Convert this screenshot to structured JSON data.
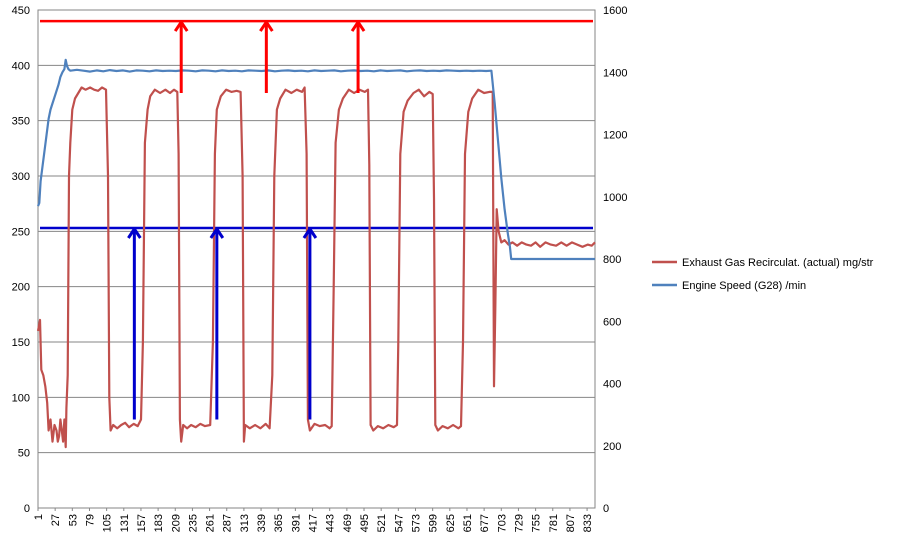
{
  "chart_data": {
    "type": "line",
    "title": "",
    "xlabel": "",
    "ylabel_left": "",
    "ylabel_right": "",
    "left_axis": {
      "min": 0,
      "max": 450,
      "step": 50,
      "ticks": [
        "0",
        "50",
        "100",
        "150",
        "200",
        "250",
        "300",
        "350",
        "400",
        "450"
      ]
    },
    "right_axis": {
      "min": 0,
      "max": 1600,
      "step": 200,
      "ticks": [
        "0",
        "200",
        "400",
        "600",
        "800",
        "1000",
        "1200",
        "1400",
        "1600"
      ]
    },
    "x_range": [
      1,
      845
    ],
    "x_ticks": [
      "1",
      "27",
      "53",
      "79",
      "105",
      "131",
      "157",
      "183",
      "209",
      "235",
      "261",
      "287",
      "313",
      "339",
      "365",
      "391",
      "417",
      "443",
      "469",
      "495",
      "521",
      "547",
      "573",
      "599",
      "625",
      "651",
      "677",
      "703",
      "729",
      "755",
      "781",
      "807",
      "833"
    ],
    "grid": true,
    "legend_position": "right",
    "colors": {
      "egr": "#c0504d",
      "speed": "#4f81bd",
      "red_annotation": "#ff0000",
      "blue_annotation": "#0000cc"
    },
    "series": [
      {
        "name": "Exhaust Gas Recirculat. (actual)  mg/str",
        "axis": "left",
        "color": "#c0504d",
        "points": [
          [
            1,
            160
          ],
          [
            4,
            170
          ],
          [
            6,
            125
          ],
          [
            9,
            120
          ],
          [
            12,
            110
          ],
          [
            15,
            95
          ],
          [
            17,
            70
          ],
          [
            20,
            80
          ],
          [
            23,
            60
          ],
          [
            26,
            75
          ],
          [
            29,
            70
          ],
          [
            31,
            60
          ],
          [
            33,
            65
          ],
          [
            35,
            80
          ],
          [
            37,
            70
          ],
          [
            39,
            60
          ],
          [
            41,
            80
          ],
          [
            43,
            55
          ],
          [
            44,
            90
          ],
          [
            46,
            120
          ],
          [
            48,
            300
          ],
          [
            50,
            330
          ],
          [
            53,
            360
          ],
          [
            57,
            370
          ],
          [
            62,
            375
          ],
          [
            67,
            380
          ],
          [
            73,
            378
          ],
          [
            80,
            380
          ],
          [
            86,
            378
          ],
          [
            92,
            377
          ],
          [
            98,
            380
          ],
          [
            104,
            378
          ],
          [
            107,
            300
          ],
          [
            109,
            100
          ],
          [
            111,
            70
          ],
          [
            115,
            75
          ],
          [
            121,
            72
          ],
          [
            127,
            75
          ],
          [
            133,
            77
          ],
          [
            139,
            73
          ],
          [
            146,
            76
          ],
          [
            152,
            74
          ],
          [
            157,
            80
          ],
          [
            160,
            150
          ],
          [
            163,
            330
          ],
          [
            167,
            360
          ],
          [
            171,
            372
          ],
          [
            178,
            378
          ],
          [
            186,
            375
          ],
          [
            194,
            378
          ],
          [
            201,
            375
          ],
          [
            207,
            378
          ],
          [
            212,
            376
          ],
          [
            214,
            320
          ],
          [
            216,
            80
          ],
          [
            218,
            60
          ],
          [
            221,
            75
          ],
          [
            227,
            72
          ],
          [
            233,
            75
          ],
          [
            240,
            73
          ],
          [
            247,
            76
          ],
          [
            254,
            74
          ],
          [
            262,
            75
          ],
          [
            266,
            150
          ],
          [
            269,
            320
          ],
          [
            272,
            360
          ],
          [
            278,
            372
          ],
          [
            286,
            378
          ],
          [
            294,
            376
          ],
          [
            302,
            377
          ],
          [
            308,
            376
          ],
          [
            311,
            300
          ],
          [
            313,
            60
          ],
          [
            315,
            75
          ],
          [
            322,
            72
          ],
          [
            330,
            75
          ],
          [
            338,
            72
          ],
          [
            346,
            76
          ],
          [
            352,
            72
          ],
          [
            356,
            120
          ],
          [
            359,
            300
          ],
          [
            363,
            360
          ],
          [
            368,
            370
          ],
          [
            376,
            378
          ],
          [
            385,
            375
          ],
          [
            393,
            378
          ],
          [
            401,
            376
          ],
          [
            405,
            380
          ],
          [
            408,
            320
          ],
          [
            410,
            80
          ],
          [
            413,
            70
          ],
          [
            420,
            76
          ],
          [
            428,
            74
          ],
          [
            436,
            75
          ],
          [
            443,
            72
          ],
          [
            446,
            74
          ],
          [
            449,
            200
          ],
          [
            452,
            330
          ],
          [
            457,
            360
          ],
          [
            463,
            370
          ],
          [
            472,
            378
          ],
          [
            480,
            375
          ],
          [
            488,
            378
          ],
          [
            496,
            376
          ],
          [
            501,
            378
          ],
          [
            503,
            310
          ],
          [
            505,
            75
          ],
          [
            509,
            70
          ],
          [
            516,
            74
          ],
          [
            524,
            72
          ],
          [
            532,
            75
          ],
          [
            540,
            73
          ],
          [
            545,
            75
          ],
          [
            547,
            150
          ],
          [
            550,
            320
          ],
          [
            555,
            358
          ],
          [
            561,
            368
          ],
          [
            570,
            375
          ],
          [
            578,
            378
          ],
          [
            586,
            372
          ],
          [
            594,
            376
          ],
          [
            599,
            374
          ],
          [
            601,
            280
          ],
          [
            603,
            75
          ],
          [
            607,
            70
          ],
          [
            614,
            74
          ],
          [
            622,
            72
          ],
          [
            630,
            75
          ],
          [
            638,
            72
          ],
          [
            642,
            74
          ],
          [
            645,
            150
          ],
          [
            648,
            320
          ],
          [
            653,
            358
          ],
          [
            659,
            370
          ],
          [
            668,
            378
          ],
          [
            677,
            375
          ],
          [
            685,
            376
          ],
          [
            690,
            376
          ],
          [
            692,
            110
          ],
          [
            694,
            180
          ],
          [
            696,
            270
          ],
          [
            699,
            250
          ],
          [
            703,
            240
          ],
          [
            708,
            242
          ],
          [
            714,
            238
          ],
          [
            720,
            240
          ],
          [
            727,
            237
          ],
          [
            734,
            240
          ],
          [
            741,
            238
          ],
          [
            748,
            237
          ],
          [
            755,
            240
          ],
          [
            762,
            236
          ],
          [
            770,
            240
          ],
          [
            778,
            238
          ],
          [
            786,
            237
          ],
          [
            794,
            240
          ],
          [
            802,
            237
          ],
          [
            810,
            240
          ],
          [
            818,
            238
          ],
          [
            826,
            236
          ],
          [
            834,
            238
          ],
          [
            840,
            237
          ],
          [
            845,
            240
          ]
        ]
      },
      {
        "name": "Engine Speed (G28)  /min",
        "axis": "right",
        "color": "#4f81bd",
        "points": [
          [
            1,
            970
          ],
          [
            3,
            980
          ],
          [
            5,
            1050
          ],
          [
            8,
            1100
          ],
          [
            11,
            1150
          ],
          [
            14,
            1200
          ],
          [
            17,
            1250
          ],
          [
            20,
            1280
          ],
          [
            23,
            1300
          ],
          [
            26,
            1320
          ],
          [
            29,
            1340
          ],
          [
            32,
            1360
          ],
          [
            35,
            1385
          ],
          [
            38,
            1400
          ],
          [
            41,
            1410
          ],
          [
            43,
            1440
          ],
          [
            45,
            1420
          ],
          [
            47,
            1410
          ],
          [
            50,
            1405
          ],
          [
            60,
            1408
          ],
          [
            70,
            1405
          ],
          [
            80,
            1402
          ],
          [
            90,
            1406
          ],
          [
            100,
            1403
          ],
          [
            110,
            1407
          ],
          [
            120,
            1404
          ],
          [
            130,
            1406
          ],
          [
            140,
            1402
          ],
          [
            150,
            1406
          ],
          [
            160,
            1405
          ],
          [
            170,
            1403
          ],
          [
            180,
            1406
          ],
          [
            190,
            1404
          ],
          [
            200,
            1405
          ],
          [
            210,
            1404
          ],
          [
            220,
            1406
          ],
          [
            230,
            1405
          ],
          [
            240,
            1403
          ],
          [
            250,
            1406
          ],
          [
            260,
            1405
          ],
          [
            270,
            1403
          ],
          [
            280,
            1406
          ],
          [
            290,
            1404
          ],
          [
            300,
            1405
          ],
          [
            310,
            1403
          ],
          [
            320,
            1406
          ],
          [
            330,
            1405
          ],
          [
            340,
            1404
          ],
          [
            350,
            1406
          ],
          [
            360,
            1403
          ],
          [
            370,
            1405
          ],
          [
            380,
            1406
          ],
          [
            390,
            1404
          ],
          [
            400,
            1405
          ],
          [
            410,
            1403
          ],
          [
            420,
            1406
          ],
          [
            430,
            1404
          ],
          [
            440,
            1405
          ],
          [
            450,
            1406
          ],
          [
            460,
            1403
          ],
          [
            470,
            1405
          ],
          [
            480,
            1406
          ],
          [
            490,
            1404
          ],
          [
            500,
            1405
          ],
          [
            510,
            1403
          ],
          [
            520,
            1406
          ],
          [
            530,
            1404
          ],
          [
            540,
            1405
          ],
          [
            550,
            1406
          ],
          [
            560,
            1403
          ],
          [
            570,
            1405
          ],
          [
            580,
            1406
          ],
          [
            590,
            1404
          ],
          [
            600,
            1405
          ],
          [
            610,
            1404
          ],
          [
            620,
            1406
          ],
          [
            630,
            1405
          ],
          [
            640,
            1404
          ],
          [
            650,
            1405
          ],
          [
            660,
            1404
          ],
          [
            670,
            1405
          ],
          [
            680,
            1404
          ],
          [
            688,
            1405
          ],
          [
            693,
            1300
          ],
          [
            698,
            1180
          ],
          [
            703,
            1060
          ],
          [
            708,
            960
          ],
          [
            713,
            880
          ],
          [
            716,
            840
          ],
          [
            718,
            800
          ],
          [
            725,
            800
          ],
          [
            735,
            800
          ],
          [
            745,
            800
          ],
          [
            760,
            800
          ],
          [
            775,
            800
          ],
          [
            790,
            800
          ],
          [
            805,
            800
          ],
          [
            820,
            800
          ],
          [
            835,
            800
          ],
          [
            845,
            800
          ]
        ]
      }
    ],
    "reference_lines": [
      {
        "axis": "left",
        "value": 440,
        "color": "#ff0000"
      },
      {
        "axis": "left",
        "value": 253,
        "color": "#0000cc"
      }
    ],
    "annotation_arrows": [
      {
        "x": 218,
        "y_from": 375,
        "y_to": 440,
        "color": "#ff0000"
      },
      {
        "x": 347,
        "y_from": 375,
        "y_to": 440,
        "color": "#ff0000"
      },
      {
        "x": 486,
        "y_from": 375,
        "y_to": 440,
        "color": "#ff0000"
      },
      {
        "x": 147,
        "y_from": 80,
        "y_to": 253,
        "color": "#0000cc"
      },
      {
        "x": 272,
        "y_from": 80,
        "y_to": 253,
        "color": "#0000cc"
      },
      {
        "x": 413,
        "y_from": 80,
        "y_to": 253,
        "color": "#0000cc"
      }
    ]
  }
}
